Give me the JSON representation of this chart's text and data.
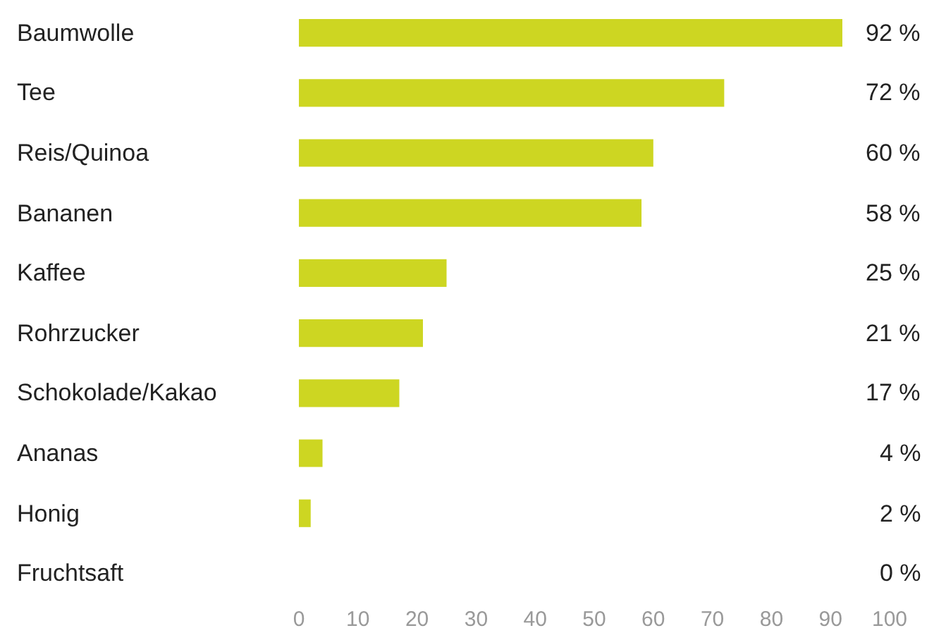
{
  "chart_data": {
    "type": "bar",
    "orientation": "horizontal",
    "categories": [
      "Baumwolle",
      "Tee",
      "Reis/Quinoa",
      "Bananen",
      "Kaffee",
      "Rohrzucker",
      "Schokolade/Kakao",
      "Ananas",
      "Honig",
      "Fruchtsaft"
    ],
    "values": [
      92,
      72,
      60,
      58,
      25,
      21,
      17,
      4,
      2,
      0
    ],
    "value_labels": [
      "92 %",
      "72 %",
      "60 %",
      "58 %",
      "25 %",
      "21 %",
      "17 %",
      "4 %",
      "2 %",
      "0 %"
    ],
    "color": "#cdd622",
    "xlim": [
      0,
      100
    ],
    "xticks": [
      0,
      10,
      20,
      30,
      40,
      50,
      60,
      70,
      80,
      90,
      100
    ]
  }
}
